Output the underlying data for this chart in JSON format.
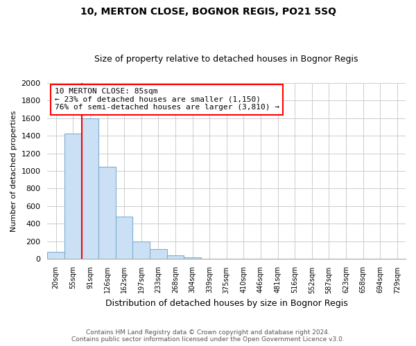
{
  "title": "10, MERTON CLOSE, BOGNOR REGIS, PO21 5SQ",
  "subtitle": "Size of property relative to detached houses in Bognor Regis",
  "xlabel": "Distribution of detached houses by size in Bognor Regis",
  "ylabel": "Number of detached properties",
  "bar_labels": [
    "20sqm",
    "55sqm",
    "91sqm",
    "126sqm",
    "162sqm",
    "197sqm",
    "233sqm",
    "268sqm",
    "304sqm",
    "339sqm",
    "375sqm",
    "410sqm",
    "446sqm",
    "481sqm",
    "516sqm",
    "552sqm",
    "587sqm",
    "623sqm",
    "658sqm",
    "694sqm",
    "729sqm"
  ],
  "bar_values": [
    85,
    1420,
    1600,
    1050,
    480,
    200,
    110,
    40,
    20,
    0,
    0,
    0,
    0,
    0,
    0,
    0,
    0,
    0,
    0,
    0,
    0
  ],
  "bar_color": "#cce0f5",
  "bar_edge_color": "#7bafd4",
  "property_line_color": "red",
  "annotation_title": "10 MERTON CLOSE: 85sqm",
  "annotation_line1": "← 23% of detached houses are smaller (1,150)",
  "annotation_line2": "76% of semi-detached houses are larger (3,810) →",
  "annotation_box_color": "white",
  "annotation_box_edge": "red",
  "ylim": [
    0,
    2000
  ],
  "yticks": [
    0,
    200,
    400,
    600,
    800,
    1000,
    1200,
    1400,
    1600,
    1800,
    2000
  ],
  "footer_line1": "Contains HM Land Registry data © Crown copyright and database right 2024.",
  "footer_line2": "Contains public sector information licensed under the Open Government Licence v3.0.",
  "bg_color": "#ffffff",
  "grid_color": "#cccccc"
}
